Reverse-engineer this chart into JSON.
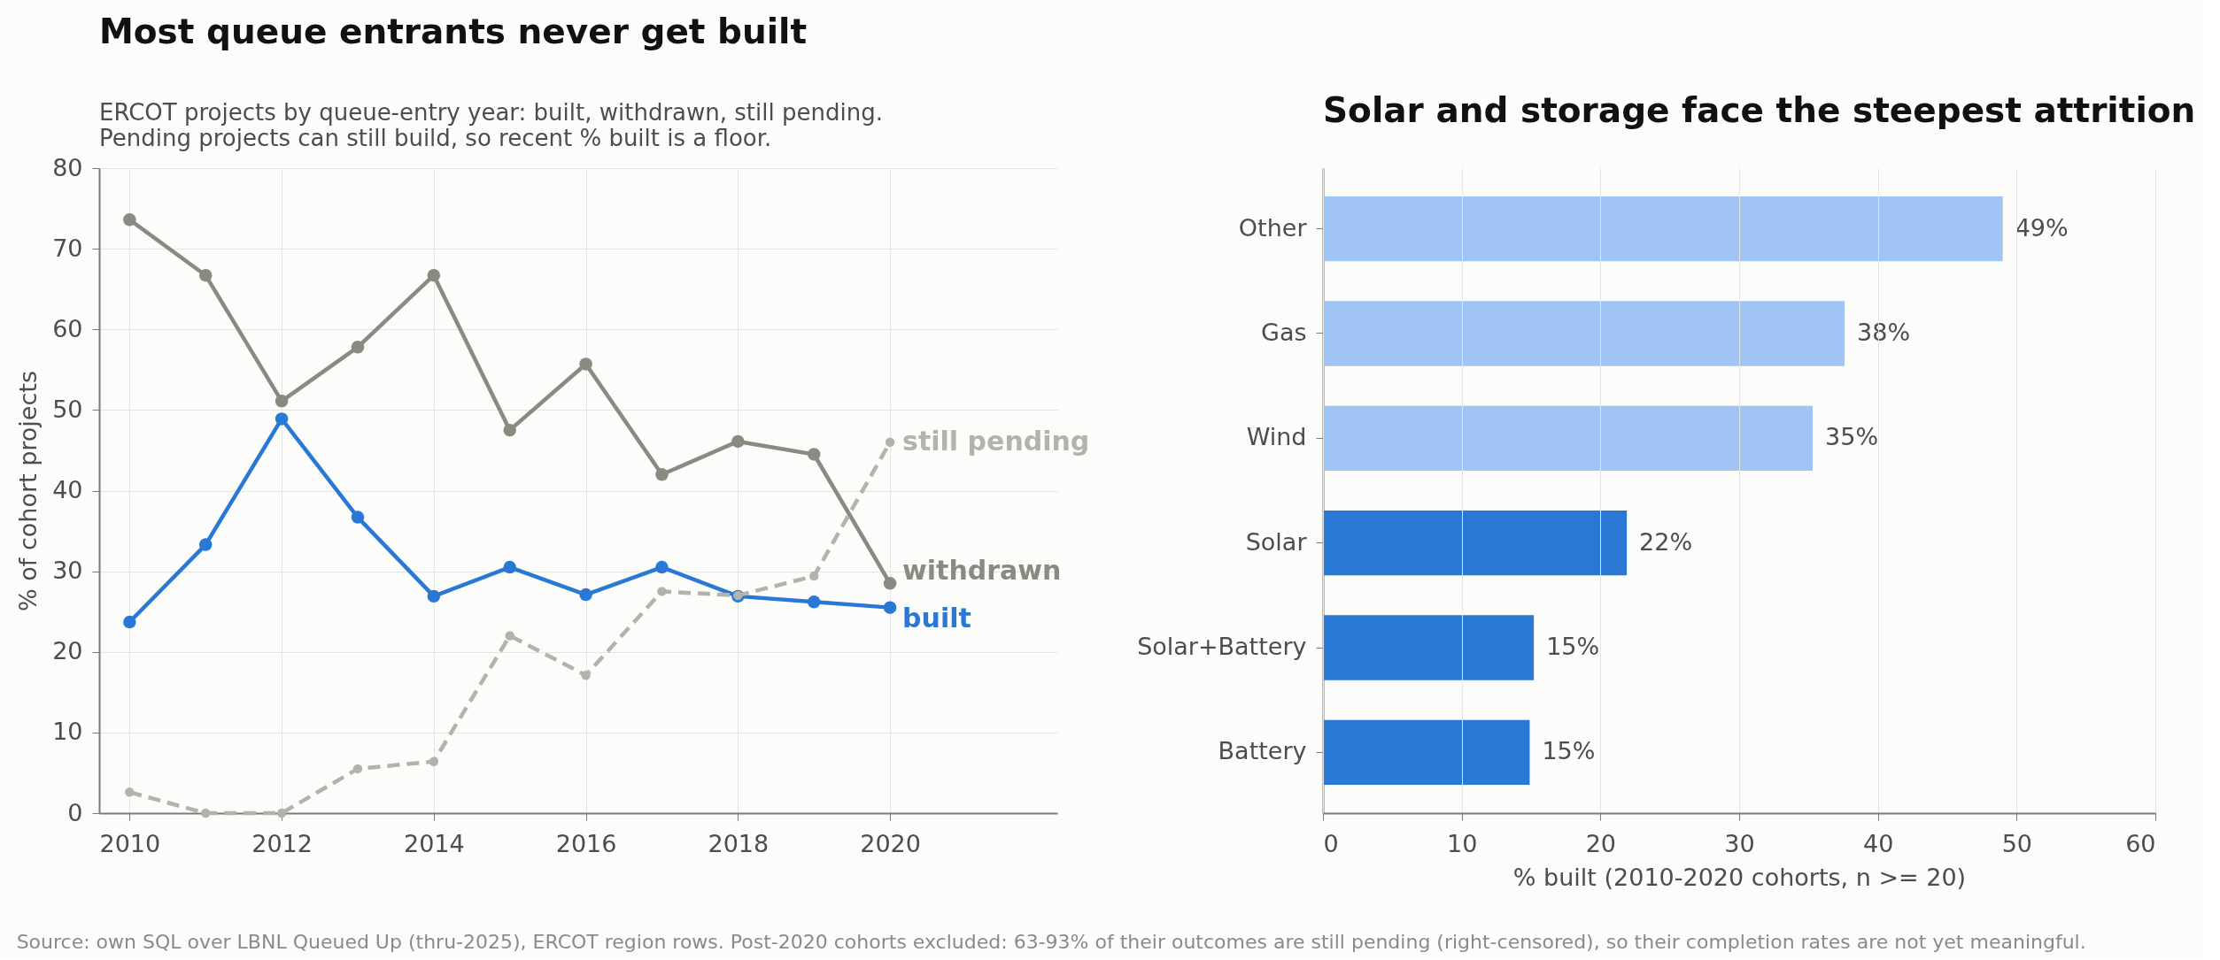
{
  "chart_data": [
    {
      "type": "line",
      "title": "Most queue entrants never get built",
      "subtitle": "ERCOT projects by queue-entry year: built, withdrawn, still pending.\nPending projects can still build, so recent % built is a floor.",
      "ylabel": "% of cohort projects",
      "x": [
        2010,
        2011,
        2012,
        2013,
        2014,
        2015,
        2016,
        2017,
        2018,
        2019,
        2020
      ],
      "series": [
        {
          "name": "withdrawn",
          "color": "#8a8a80",
          "values": [
            73.6,
            66.7,
            51.1,
            57.8,
            66.7,
            47.5,
            55.7,
            42.0,
            46.1,
            44.5,
            28.5
          ]
        },
        {
          "name": "built",
          "color": "#2a78d6",
          "values": [
            23.7,
            33.3,
            48.9,
            36.7,
            26.9,
            30.5,
            27.1,
            30.5,
            26.9,
            26.2,
            25.5
          ]
        },
        {
          "name": "still pending",
          "color": "#b3b3ab",
          "line_style": "dashed",
          "values": [
            2.6,
            0,
            0,
            5.5,
            6.4,
            22.0,
            17.1,
            27.5,
            27.0,
            29.4,
            46.0
          ]
        }
      ],
      "xlim": [
        2009.6,
        2022.2
      ],
      "ylim": [
        0,
        80
      ],
      "xticks": [
        2010,
        2012,
        2014,
        2016,
        2018,
        2020
      ],
      "yticks": [
        0,
        10,
        20,
        30,
        40,
        50,
        60,
        70,
        80
      ],
      "grid": true,
      "legend": false,
      "marker": "circle",
      "line_style": "solid",
      "annotations": [
        "Source: own SQL over LBNL Queued Up (thru-2025), ERCOT region rows. Post-2020 cohorts excluded: 63-93% of their outcomes are still pending (right-censored), so their completion rates are not yet meaningful."
      ]
    },
    {
      "type": "bar",
      "orientation": "horizontal",
      "title": "Solar and storage face the steepest attrition",
      "xlabel": "% built (2010-2020 cohorts, n >= 20)",
      "categories": [
        "Other",
        "Gas",
        "Wind",
        "Solar",
        "Solar+Battery",
        "Battery"
      ],
      "values": [
        49.0,
        37.6,
        35.3,
        21.9,
        15.2,
        14.9
      ],
      "colors": [
        "#a0c4f4",
        "#a0c4f4",
        "#a0c4f4",
        "#2a78d6",
        "#2a78d6",
        "#2a78d6"
      ],
      "value_labels": [
        "49%",
        "38%",
        "35%",
        "22%",
        "15%",
        "15%"
      ],
      "xlim": [
        0,
        60
      ],
      "xticks": [
        0,
        10,
        20,
        30,
        40,
        50,
        60
      ],
      "grid": "x",
      "legend": false
    }
  ]
}
